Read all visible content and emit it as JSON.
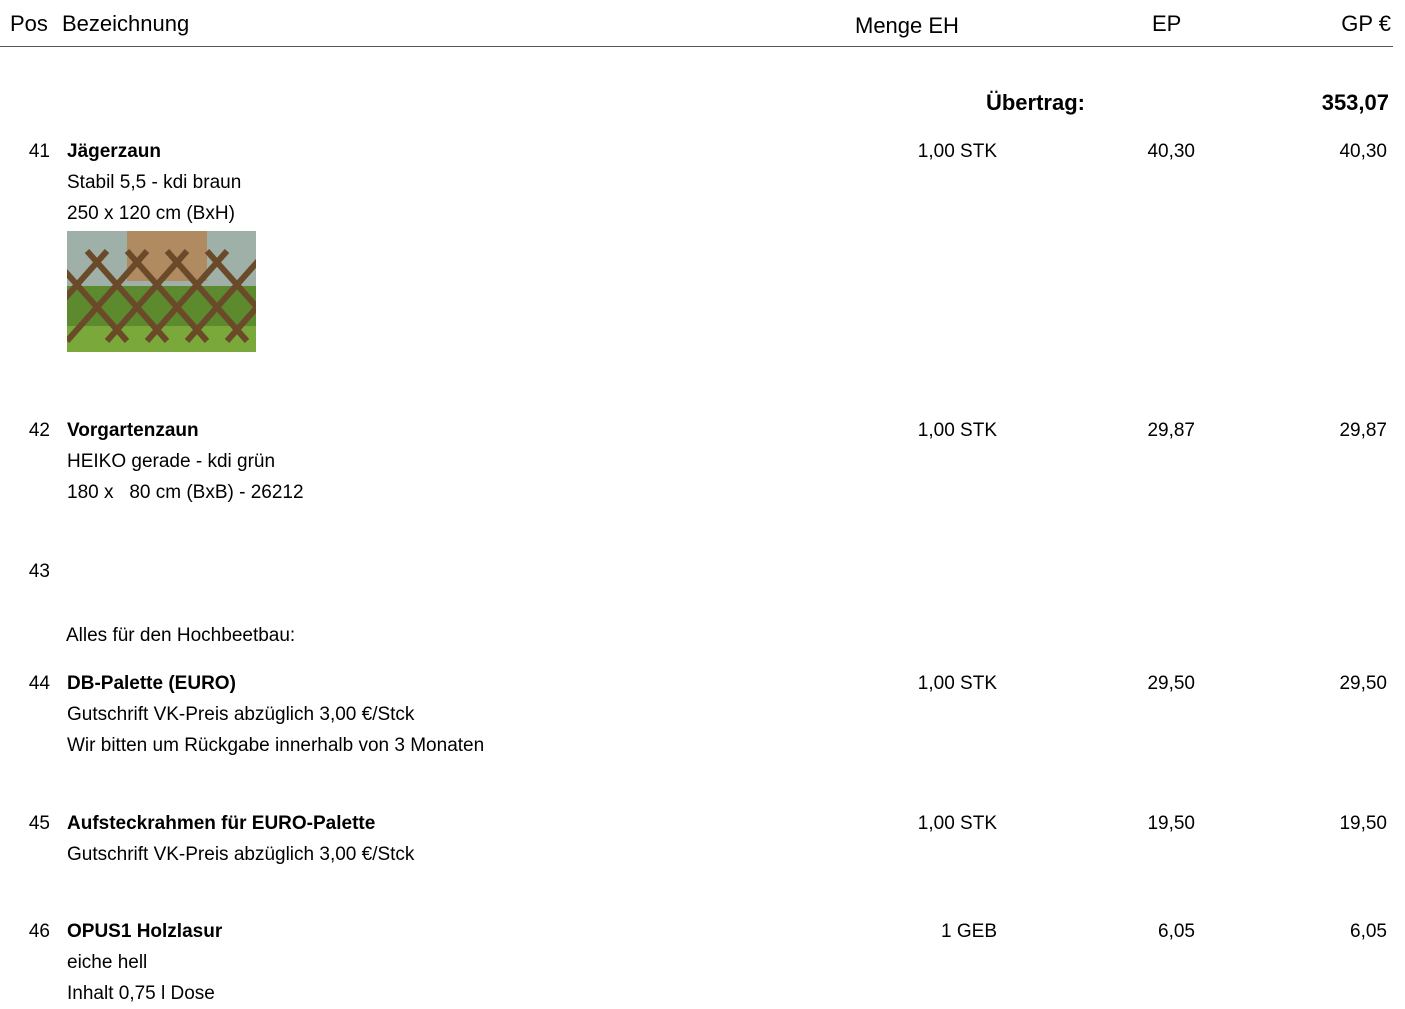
{
  "header": {
    "pos": "Pos",
    "bezeichnung": "Bezeichnung",
    "menge_eh": "Menge EH",
    "ep": "EP",
    "gp": "GP €"
  },
  "uebertrag": {
    "label": "Übertrag:",
    "value": "353,07"
  },
  "items": [
    {
      "pos": "41",
      "title": "Jägerzaun",
      "lines": [
        "Stabil 5,5 - kdi braun",
        "250 x 120 cm (BxH)"
      ],
      "menge": "1,00",
      "eh": "STK",
      "ep": "40,30",
      "gp": "40,30"
    },
    {
      "pos": "42",
      "title": "Vorgartenzaun",
      "lines": [
        "HEIKO gerade - kdi grün",
        "180 x   80 cm (BxB) - 26212"
      ],
      "menge": "1,00",
      "eh": "STK",
      "ep": "29,87",
      "gp": "29,87"
    },
    {
      "pos": "43"
    },
    {
      "pos": "44",
      "title": "DB-Palette (EURO)",
      "lines": [
        "Gutschrift VK-Preis abzüglich 3,00 €/Stck",
        "Wir bitten um Rückgabe innerhalb von 3 Monaten"
      ],
      "menge": "1,00",
      "eh": "STK",
      "ep": "29,50",
      "gp": "29,50"
    },
    {
      "pos": "45",
      "title": "Aufsteckrahmen für EURO-Palette",
      "lines": [
        "Gutschrift VK-Preis abzüglich 3,00 €/Stck"
      ],
      "menge": "1,00",
      "eh": "STK",
      "ep": "19,50",
      "gp": "19,50"
    },
    {
      "pos": "46",
      "title": "OPUS1 Holzlasur",
      "lines": [
        "eiche hell",
        "Inhalt 0,75 l Dose"
      ],
      "menge": "1",
      "eh": "GEB",
      "ep": "6,05",
      "gp": "6,05"
    }
  ],
  "note": "Alles für den Hochbeetbau:"
}
